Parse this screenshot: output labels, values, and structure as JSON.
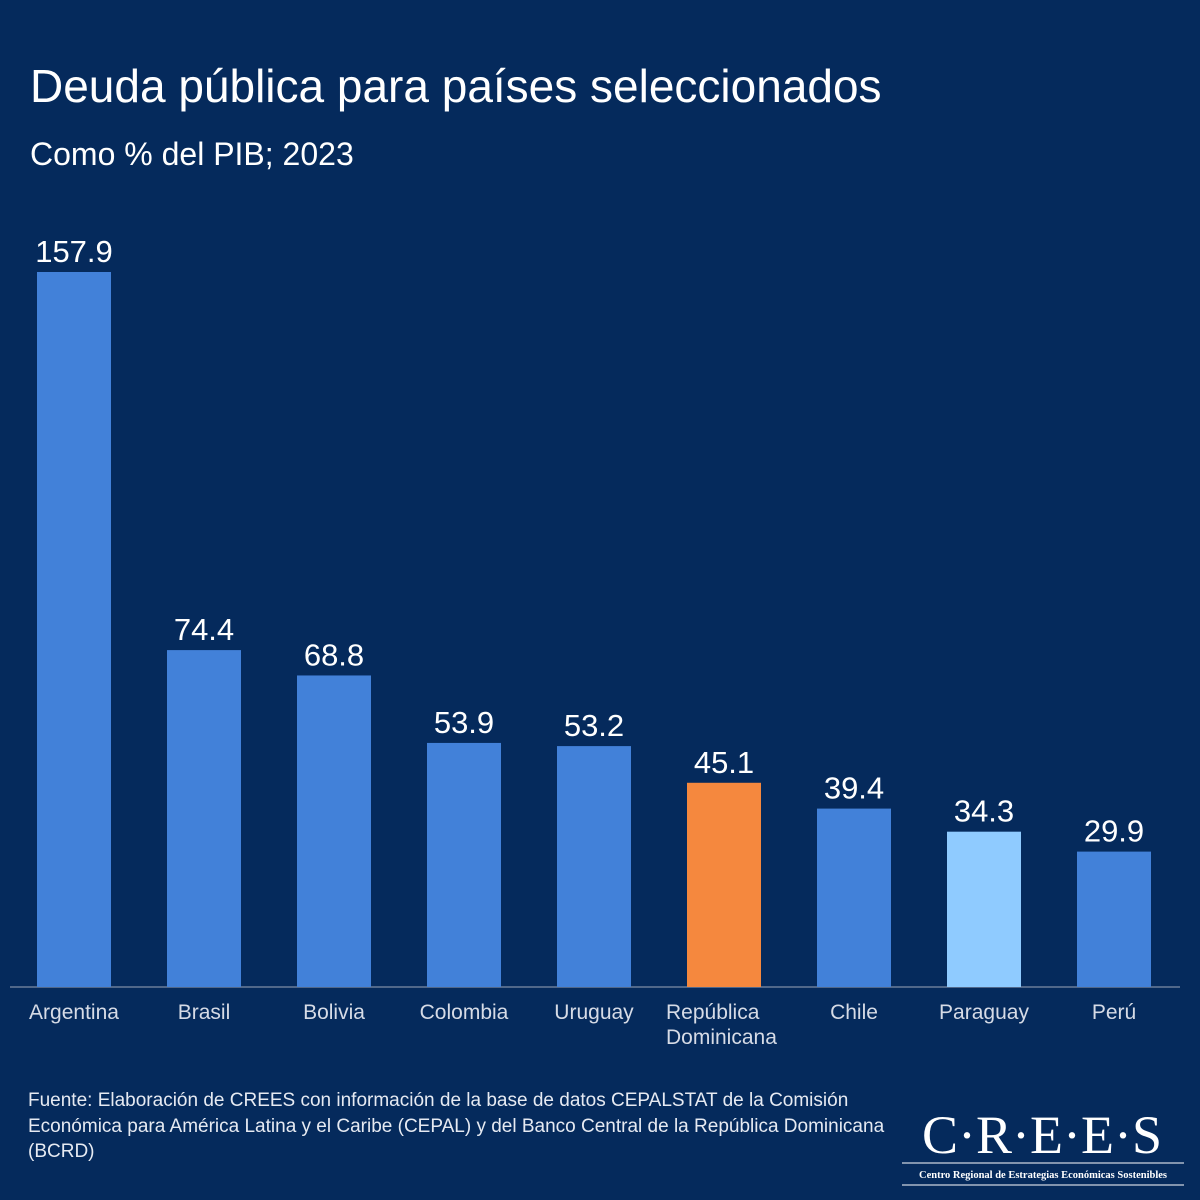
{
  "chart_data": {
    "type": "bar",
    "title": "Deuda pública para países seleccionados",
    "subtitle": "Como % del PIB; 2023",
    "categories": [
      "Argentina",
      "Brasil",
      "Bolivia",
      "Colombia",
      "Uruguay",
      "República Dominicana",
      "Chile",
      "Paraguay",
      "Perú"
    ],
    "values": [
      157.9,
      74.4,
      68.8,
      53.9,
      53.2,
      45.1,
      39.4,
      34.3,
      29.9
    ],
    "colors": [
      "#4281d9",
      "#4281d9",
      "#4281d9",
      "#4281d9",
      "#4281d9",
      "#f5883e",
      "#4281d9",
      "#8fcbff",
      "#4281d9"
    ]
  },
  "source": "Fuente: Elaboración de CREES con información de la base de datos CEPALSTAT de la Comisión Económica para América Latina y el Caribe (CEPAL) y del Banco Central de la República Dominicana (BCRD)",
  "logo": {
    "name": "C·R·E·E·S",
    "tagline": "Centro Regional de Estrategias Económicas Sostenibles"
  }
}
